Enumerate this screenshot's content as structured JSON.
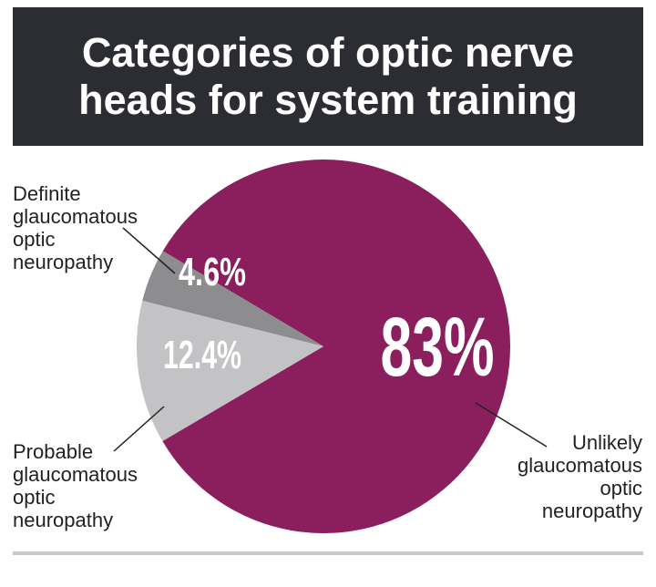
{
  "chart_data": {
    "type": "pie",
    "title": "Categories of optic nerve heads for system training",
    "categories": [
      "Unlikely glaucomatous optic neuropathy",
      "Probable glaucomatous optic neuropathy",
      "Definite glaucomatous optic neuropathy"
    ],
    "values": [
      83,
      12.4,
      4.6
    ],
    "value_labels": [
      "83%",
      "12.4%",
      "4.6%"
    ],
    "colors": [
      "#8b1f5e",
      "#c3c3c5",
      "#8d8d8f"
    ]
  }
}
